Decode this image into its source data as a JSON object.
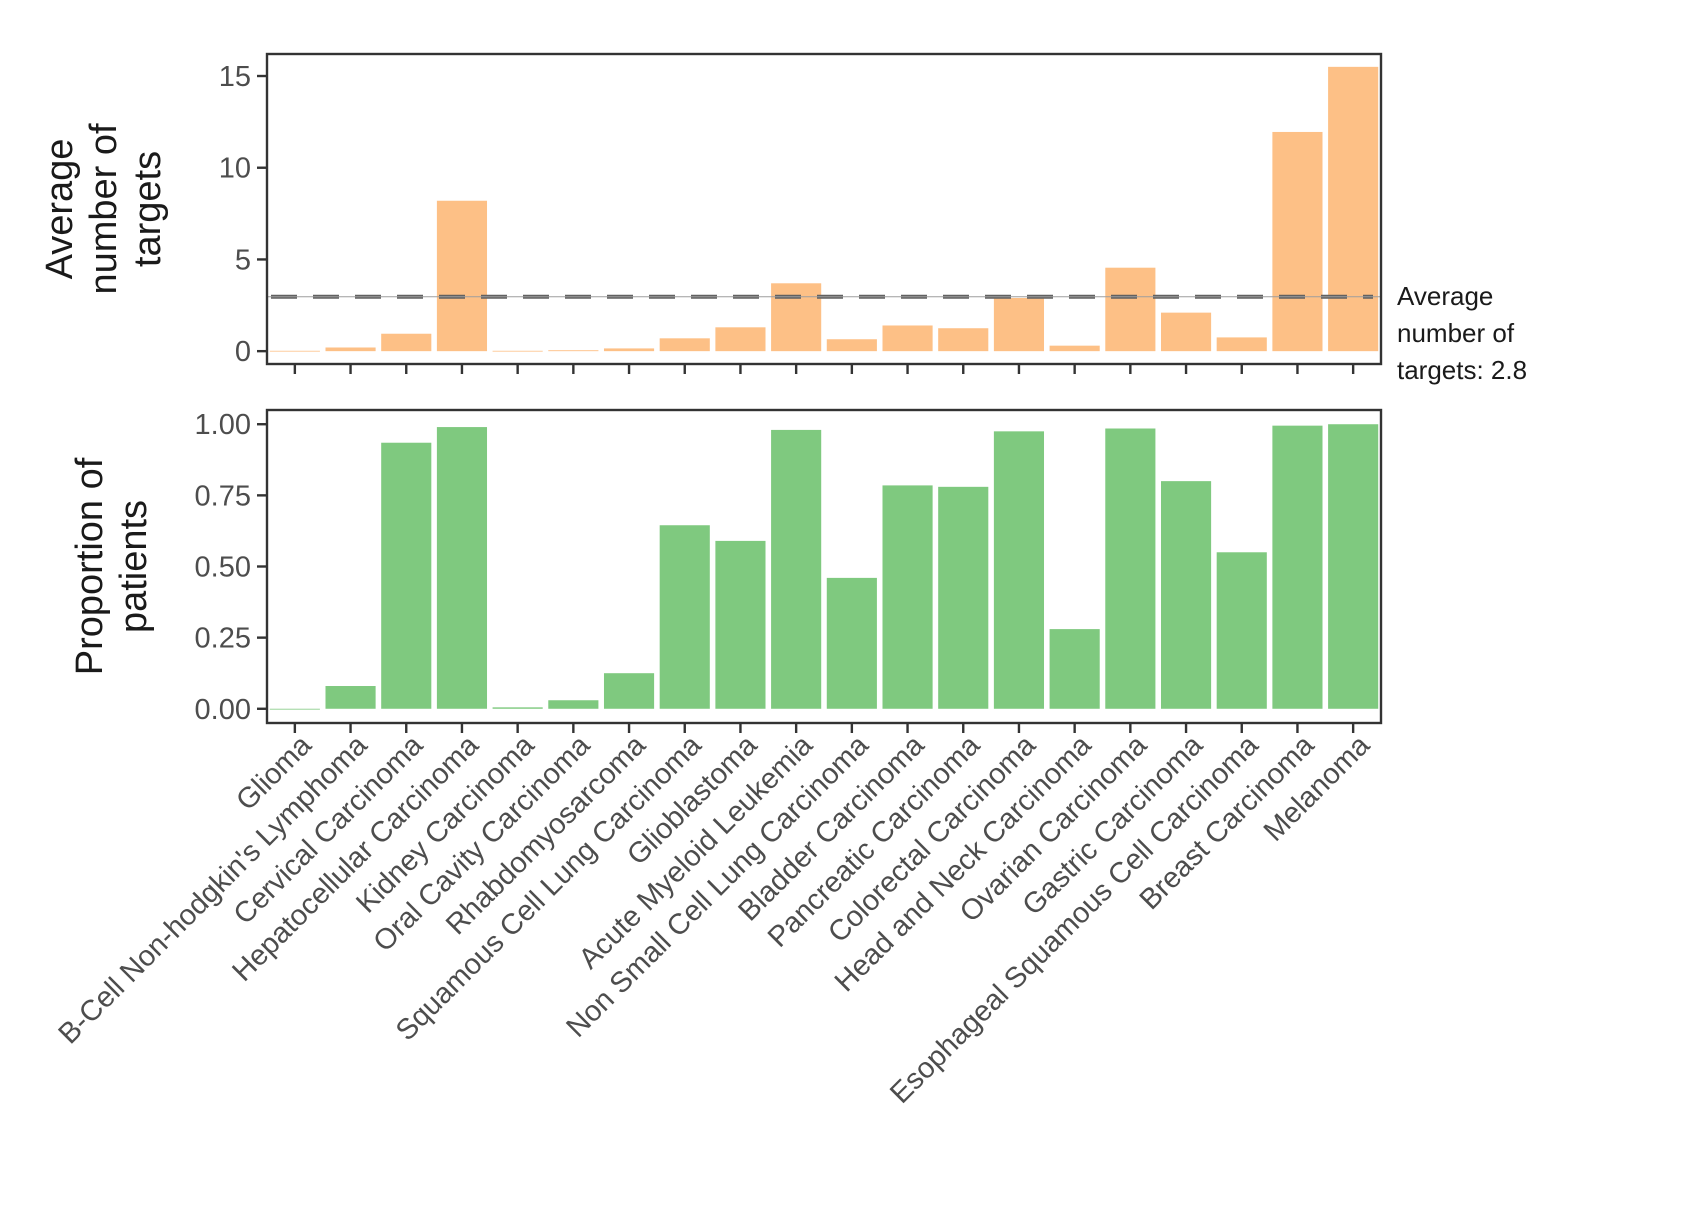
{
  "chart_data": [
    {
      "type": "bar",
      "title": "",
      "xlabel": "",
      "ylabel_lines": [
        "Average",
        "number of",
        "targets"
      ],
      "ylim": [
        -0.7,
        16.2
      ],
      "yticks": [
        0,
        5,
        10,
        15
      ],
      "ytick_labels": [
        "0",
        "5",
        "10",
        "15"
      ],
      "grid": false,
      "bar_color": "#FDC086",
      "reference_line": {
        "value": 2.8,
        "label_lines": [
          "Average",
          "number of",
          "targets: 2.8"
        ],
        "color": "#616161"
      },
      "categories": [
        "Glioma",
        "B-Cell Non-hodgkin's Lymphoma",
        "Cervical Carcinoma",
        "Hepatocellular Carcinoma",
        "Kidney Carcinoma",
        "Oral Cavity Carcinoma",
        "Rhabdomyosarcoma",
        "Squamous Cell Lung Carcinoma",
        "Glioblastoma",
        "Acute Myeloid Leukemia",
        "Non Small Cell Lung Carcinoma",
        "Bladder Carcinoma",
        "Pancreatic Carcinoma",
        "Colorectal Carcinoma",
        "Head and Neck Carcinoma",
        "Ovarian Carcinoma",
        "Gastric Carcinoma",
        "Esophageal Squamous Cell Carcinoma",
        "Breast Carcinoma",
        "Melanoma"
      ],
      "values": [
        0.02,
        0.2,
        0.95,
        8.2,
        0.02,
        0.05,
        0.15,
        0.7,
        1.3,
        3.7,
        0.65,
        1.4,
        1.25,
        2.9,
        0.3,
        4.55,
        2.1,
        0.75,
        11.95,
        15.5
      ]
    },
    {
      "type": "bar",
      "title": "",
      "xlabel": "",
      "ylabel_lines": [
        "Proportion of",
        "patients"
      ],
      "ylim": [
        -0.05,
        1.05
      ],
      "yticks": [
        0,
        0.25,
        0.5,
        0.75,
        1.0
      ],
      "ytick_labels": [
        "0.00",
        "0.25",
        "0.50",
        "0.75",
        "1.00"
      ],
      "grid": false,
      "bar_color": "#7FC97F",
      "categories": [
        "Glioma",
        "B-Cell Non-hodgkin's Lymphoma",
        "Cervical Carcinoma",
        "Hepatocellular Carcinoma",
        "Kidney Carcinoma",
        "Oral Cavity Carcinoma",
        "Rhabdomyosarcoma",
        "Squamous Cell Lung Carcinoma",
        "Glioblastoma",
        "Acute Myeloid Leukemia",
        "Non Small Cell Lung Carcinoma",
        "Bladder Carcinoma",
        "Pancreatic Carcinoma",
        "Colorectal Carcinoma",
        "Head and Neck Carcinoma",
        "Ovarian Carcinoma",
        "Gastric Carcinoma",
        "Esophageal Squamous Cell Carcinoma",
        "Breast Carcinoma",
        "Melanoma"
      ],
      "values": [
        0.0,
        0.08,
        0.935,
        0.99,
        0.005,
        0.03,
        0.125,
        0.645,
        0.59,
        0.98,
        0.46,
        0.785,
        0.78,
        0.975,
        0.28,
        0.985,
        0.8,
        0.55,
        0.995,
        1.0
      ]
    }
  ]
}
